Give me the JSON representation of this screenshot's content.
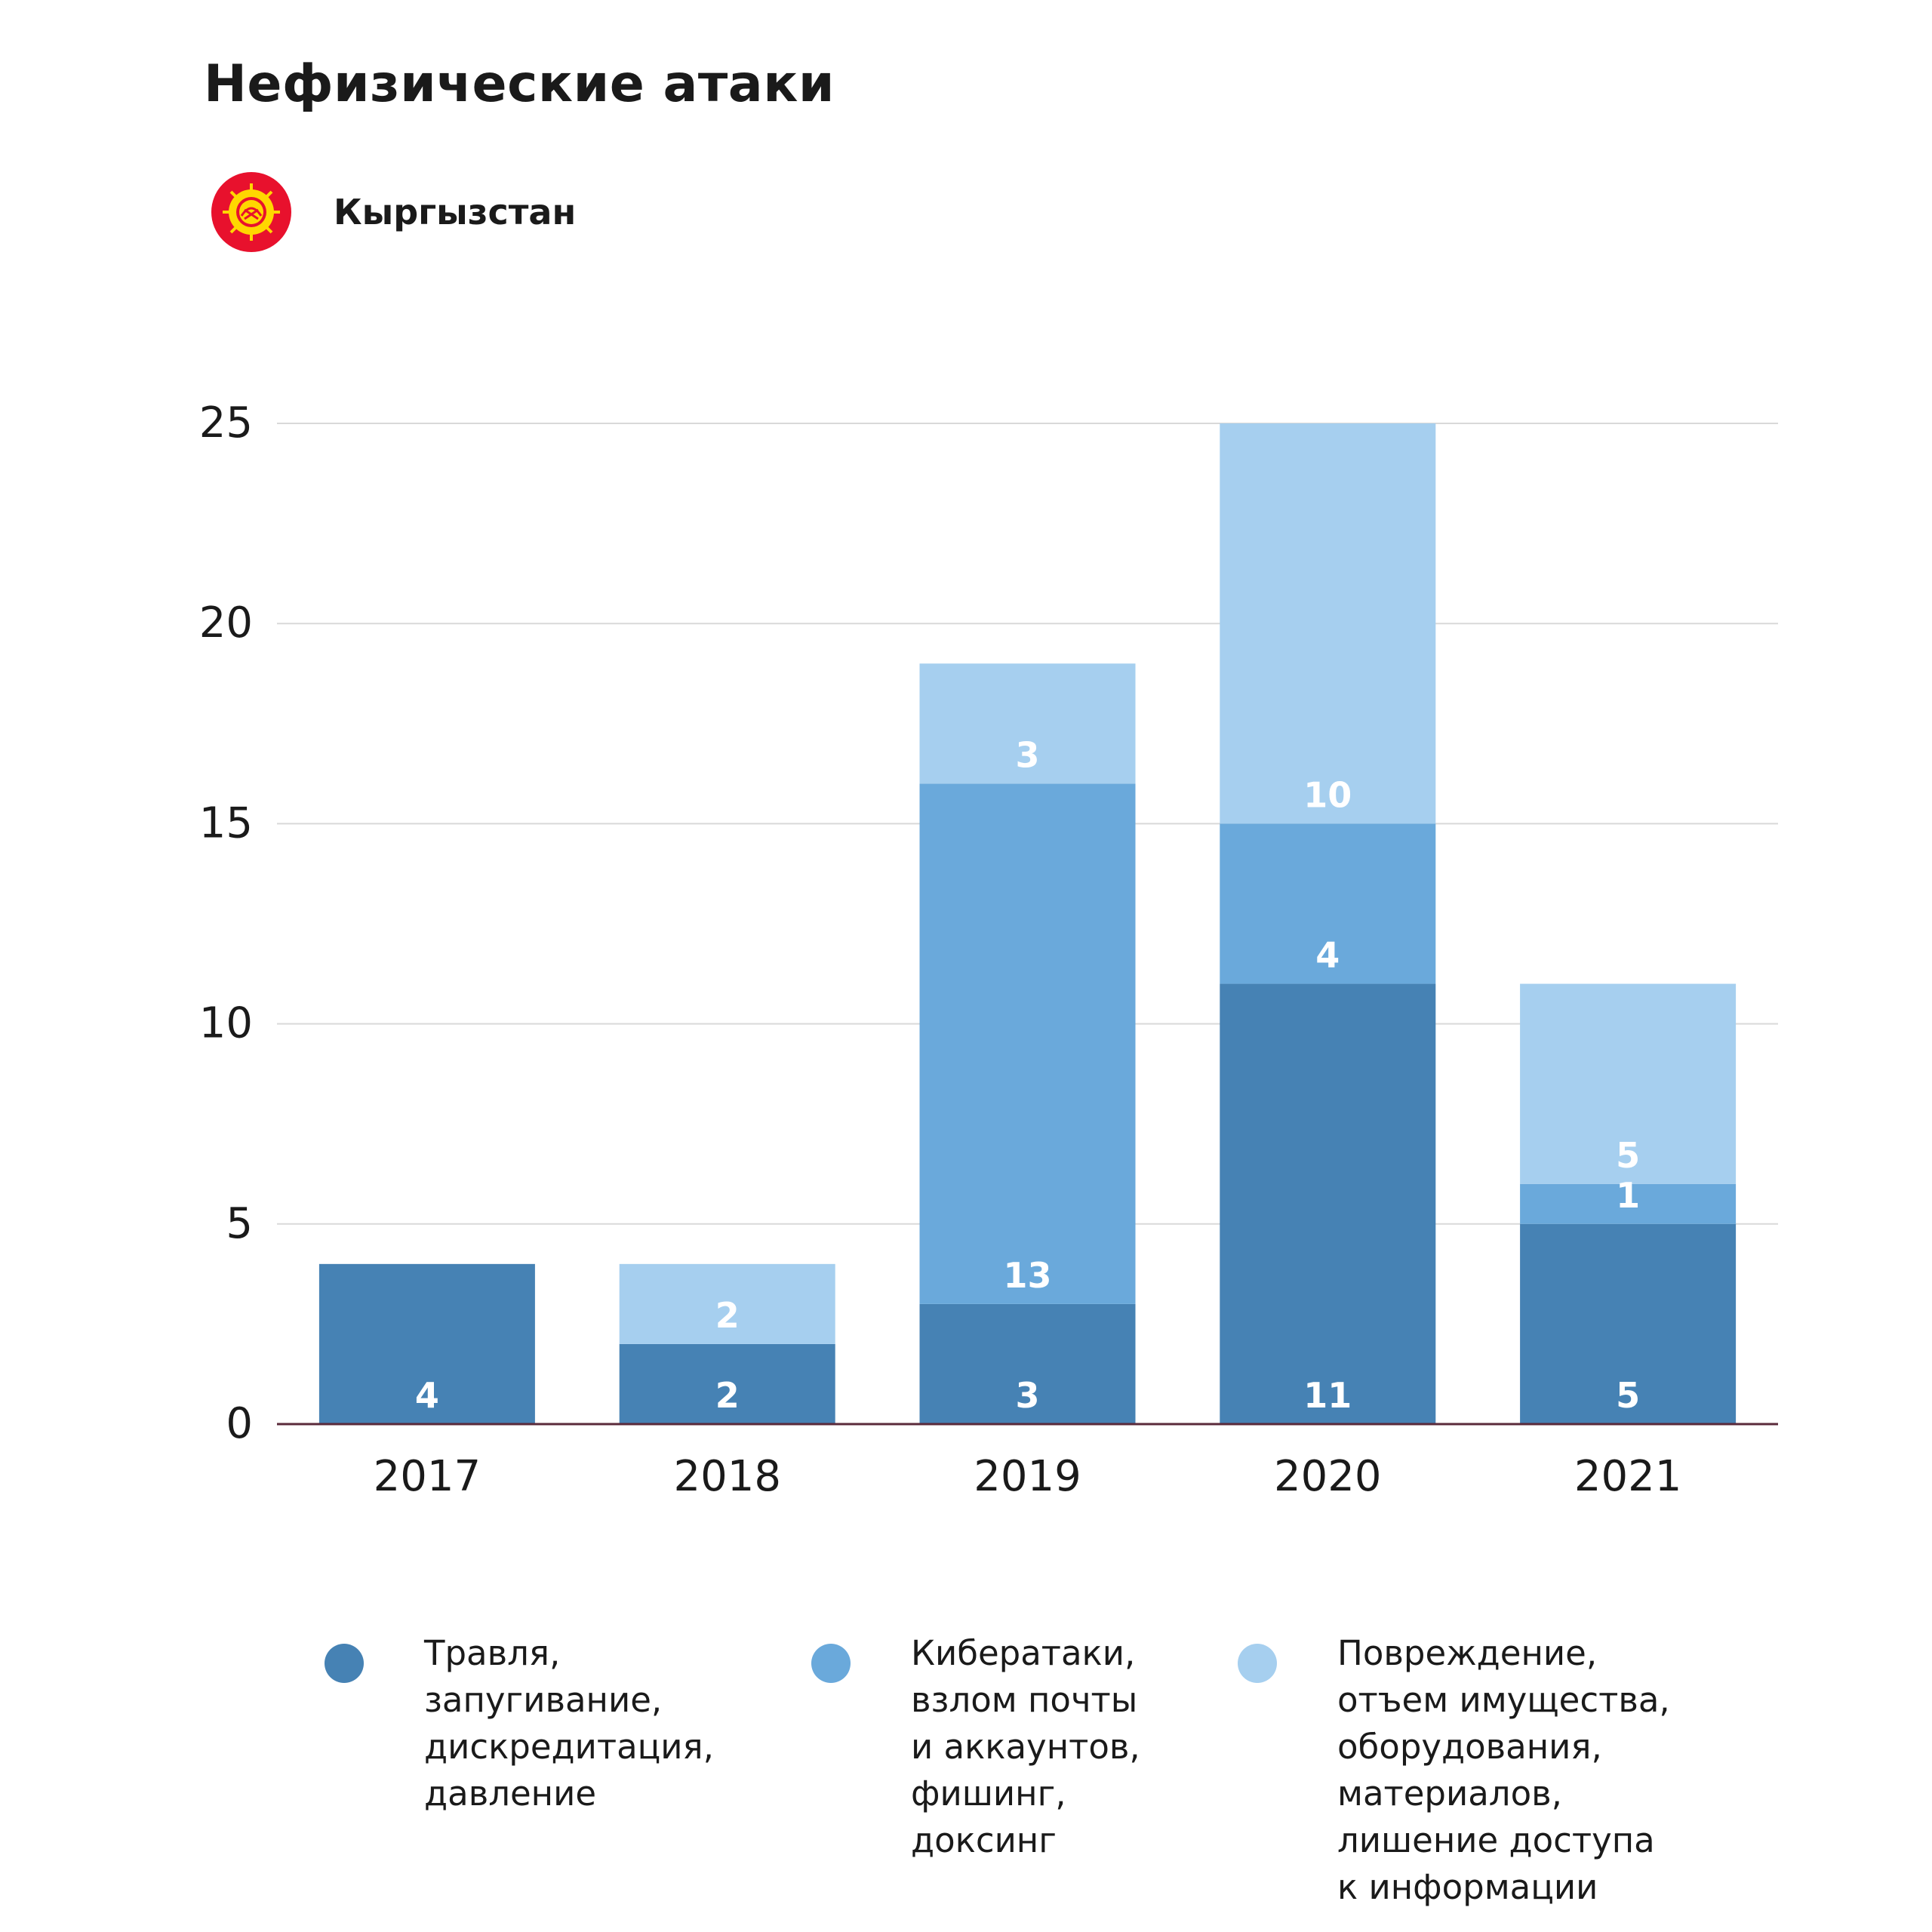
{
  "title": "Нефизические атаки",
  "country": {
    "name": "Кыргызстан",
    "flag_icon": "kyrgyzstan-flag-icon"
  },
  "colors": {
    "dark": "#4682b4",
    "mid": "#6aa9db",
    "light": "#a6cfef",
    "grid": "#d9d9d9",
    "axis": "#5a2a3a"
  },
  "legend": [
    {
      "label": "Травля,\nзапугивание,\nдискредитация,\nдавление",
      "color": "#4682b4"
    },
    {
      "label": "Кибератаки,\nвзлом почты\nи аккаунтов,\nфишинг,\nдоксинг",
      "color": "#6aa9db"
    },
    {
      "label": "Повреждение,\nотъем имущества,\nоборудования,\nматериалов,\nлишение доступа\nк информации",
      "color": "#a6cfef"
    }
  ],
  "chart_data": {
    "type": "bar",
    "stacked": true,
    "categories": [
      "2017",
      "2018",
      "2019",
      "2020",
      "2021"
    ],
    "series": [
      {
        "name": "Травля, запугивание, дискредитация, давление",
        "values": [
          4,
          2,
          3,
          11,
          5
        ],
        "color": "#4682b4"
      },
      {
        "name": "Кибератаки, взлом почты и аккаунтов, фишинг, доксинг",
        "values": [
          0,
          0,
          13,
          4,
          1
        ],
        "color": "#6aa9db"
      },
      {
        "name": "Повреждение, отъем имущества, оборудования, материалов, лишение доступа к информации",
        "values": [
          0,
          2,
          3,
          10,
          5
        ],
        "color": "#a6cfef"
      }
    ],
    "yticks": [
      0,
      5,
      10,
      15,
      20,
      25
    ],
    "ylim": [
      0,
      25
    ],
    "grid": true,
    "legend_position": "bottom"
  }
}
